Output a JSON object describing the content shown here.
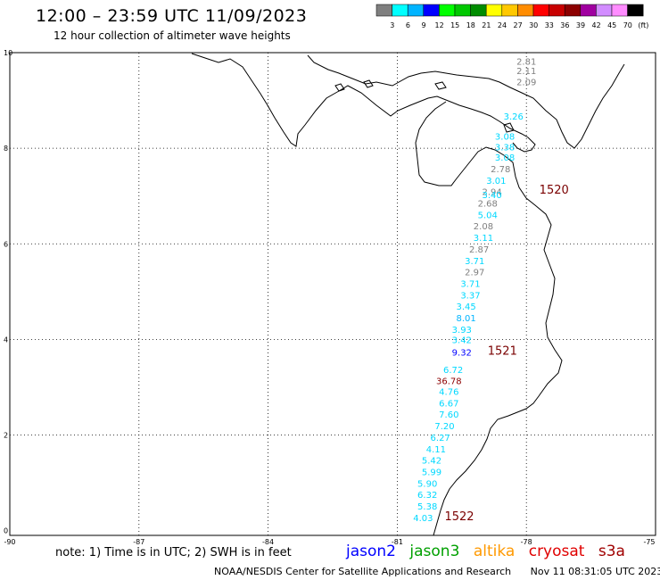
{
  "header": {
    "title": "12:00 – 23:59 UTC 11/09/2023",
    "subtitle": "12 hour collection of altimeter wave heights"
  },
  "color_scale": {
    "colors": [
      "#7f7f7f",
      "#00ffff",
      "#00b4ff",
      "#0000ff",
      "#00ff00",
      "#00c800",
      "#008c00",
      "#ffff00",
      "#ffc800",
      "#ff8c00",
      "#ff0000",
      "#c80000",
      "#8c0000",
      "#a000a0",
      "#d28cff",
      "#ff8cff",
      "#000000"
    ],
    "labels": [
      "3",
      "6",
      "9",
      "12",
      "15",
      "18",
      "21",
      "24",
      "27",
      "30",
      "33",
      "36",
      "39",
      "42",
      "45",
      "70",
      "(ft)"
    ]
  },
  "axes": {
    "x_ticks": [
      "-90",
      "-87",
      "-84",
      "-81",
      "-78",
      "-75"
    ],
    "y_ticks": [
      "10",
      "8",
      "6",
      "4",
      "2",
      "0"
    ]
  },
  "chart_data": {
    "type": "scatter",
    "x_range": [
      -90,
      -75
    ],
    "y_range": [
      -0.1,
      10
    ],
    "readings": [
      {
        "lon": -78.0,
        "lat": 9.75,
        "swh": "2.81",
        "color": "#7f7f7f"
      },
      {
        "lon": -78.0,
        "lat": 9.55,
        "swh": "2.11",
        "color": "#7f7f7f"
      },
      {
        "lon": -78.0,
        "lat": 9.32,
        "swh": "2.09",
        "color": "#7f7f7f"
      },
      {
        "lon": -78.3,
        "lat": 8.6,
        "swh": "3.26",
        "color": "#00d8ff"
      },
      {
        "lon": -78.5,
        "lat": 8.18,
        "swh": "3.08",
        "color": "#00d8ff"
      },
      {
        "lon": -78.5,
        "lat": 7.96,
        "swh": "3.38",
        "color": "#00d8ff"
      },
      {
        "lon": -78.5,
        "lat": 7.74,
        "swh": "3.08",
        "color": "#00d8ff"
      },
      {
        "lon": -78.6,
        "lat": 7.5,
        "swh": "2.78",
        "color": "#7f7f7f"
      },
      {
        "lon": -78.7,
        "lat": 7.26,
        "swh": "3.01",
        "color": "#00d8ff"
      },
      {
        "lon": -78.8,
        "lat": 7.02,
        "swh": "2.94",
        "color": "#7f7f7f"
      },
      {
        "lon": -78.8,
        "lat": 6.96,
        "swh": "3.40",
        "color": "#00d8ff"
      },
      {
        "lon": -78.9,
        "lat": 6.78,
        "swh": "2.68",
        "color": "#7f7f7f"
      },
      {
        "lon": -78.9,
        "lat": 6.54,
        "swh": "5.04",
        "color": "#00d8ff"
      },
      {
        "lon": -79.0,
        "lat": 6.3,
        "swh": "2.08",
        "color": "#7f7f7f"
      },
      {
        "lon": -79.0,
        "lat": 6.06,
        "swh": "3.11",
        "color": "#00d8ff"
      },
      {
        "lon": -79.1,
        "lat": 5.82,
        "swh": "2.87",
        "color": "#7f7f7f"
      },
      {
        "lon": -79.2,
        "lat": 5.58,
        "swh": "3.71",
        "color": "#00d8ff"
      },
      {
        "lon": -79.2,
        "lat": 5.34,
        "swh": "2.97",
        "color": "#7f7f7f"
      },
      {
        "lon": -79.3,
        "lat": 5.1,
        "swh": "3.71",
        "color": "#00d8ff"
      },
      {
        "lon": -79.3,
        "lat": 4.86,
        "swh": "3.37",
        "color": "#00d8ff"
      },
      {
        "lon": -79.4,
        "lat": 4.62,
        "swh": "3.45",
        "color": "#00d8ff"
      },
      {
        "lon": -79.4,
        "lat": 4.38,
        "swh": "8.01",
        "color": "#00b4ff"
      },
      {
        "lon": -79.5,
        "lat": 4.14,
        "swh": "3.93",
        "color": "#00d8ff"
      },
      {
        "lon": -79.5,
        "lat": 3.92,
        "swh": "3.42",
        "color": "#00d8ff"
      },
      {
        "lon": -79.5,
        "lat": 3.66,
        "swh": "9.32",
        "color": "#0000ff"
      },
      {
        "lon": -79.7,
        "lat": 3.3,
        "swh": "6.72",
        "color": "#00d8ff"
      },
      {
        "lon": -79.8,
        "lat": 3.06,
        "swh": "36.78",
        "color": "#8c0000"
      },
      {
        "lon": -79.8,
        "lat": 2.84,
        "swh": "4.76",
        "color": "#00d8ff"
      },
      {
        "lon": -79.8,
        "lat": 2.6,
        "swh": "6.67",
        "color": "#00d8ff"
      },
      {
        "lon": -79.8,
        "lat": 2.36,
        "swh": "7.60",
        "color": "#00d8ff"
      },
      {
        "lon": -79.9,
        "lat": 2.12,
        "swh": "7.20",
        "color": "#00d8ff"
      },
      {
        "lon": -80.0,
        "lat": 1.88,
        "swh": "6.27",
        "color": "#00d8ff"
      },
      {
        "lon": -80.1,
        "lat": 1.64,
        "swh": "4.11",
        "color": "#00d8ff"
      },
      {
        "lon": -80.2,
        "lat": 1.4,
        "swh": "5.42",
        "color": "#00d8ff"
      },
      {
        "lon": -80.2,
        "lat": 1.16,
        "swh": "5.99",
        "color": "#00d8ff"
      },
      {
        "lon": -80.3,
        "lat": 0.92,
        "swh": "5.90",
        "color": "#00d8ff"
      },
      {
        "lon": -80.3,
        "lat": 0.68,
        "swh": "6.32",
        "color": "#00d8ff"
      },
      {
        "lon": -80.3,
        "lat": 0.44,
        "swh": "5.38",
        "color": "#00d8ff"
      },
      {
        "lon": -80.4,
        "lat": 0.2,
        "swh": "4.03",
        "color": "#00d8ff"
      }
    ],
    "pass_labels": [
      {
        "lon": -77.7,
        "lat": 7.05,
        "text": "1520"
      },
      {
        "lon": -78.9,
        "lat": 3.68,
        "text": "1521"
      },
      {
        "lon": -79.9,
        "lat": 0.22,
        "text": "1522"
      }
    ]
  },
  "note": "note: 1) Time is in UTC; 2) SWH is in feet",
  "legend": [
    {
      "name": "jason2",
      "color": "#0000ff"
    },
    {
      "name": "jason3",
      "color": "#00a000"
    },
    {
      "name": "altika",
      "color": "#ff9900"
    },
    {
      "name": "cryosat",
      "color": "#e00000"
    },
    {
      "name": "s3a",
      "color": "#a00000"
    }
  ],
  "credit": {
    "org": "NOAA/NESDIS Center for Satellite Applications and Research",
    "timestamp": "Nov 11 08:31:05 UTC 2023"
  }
}
